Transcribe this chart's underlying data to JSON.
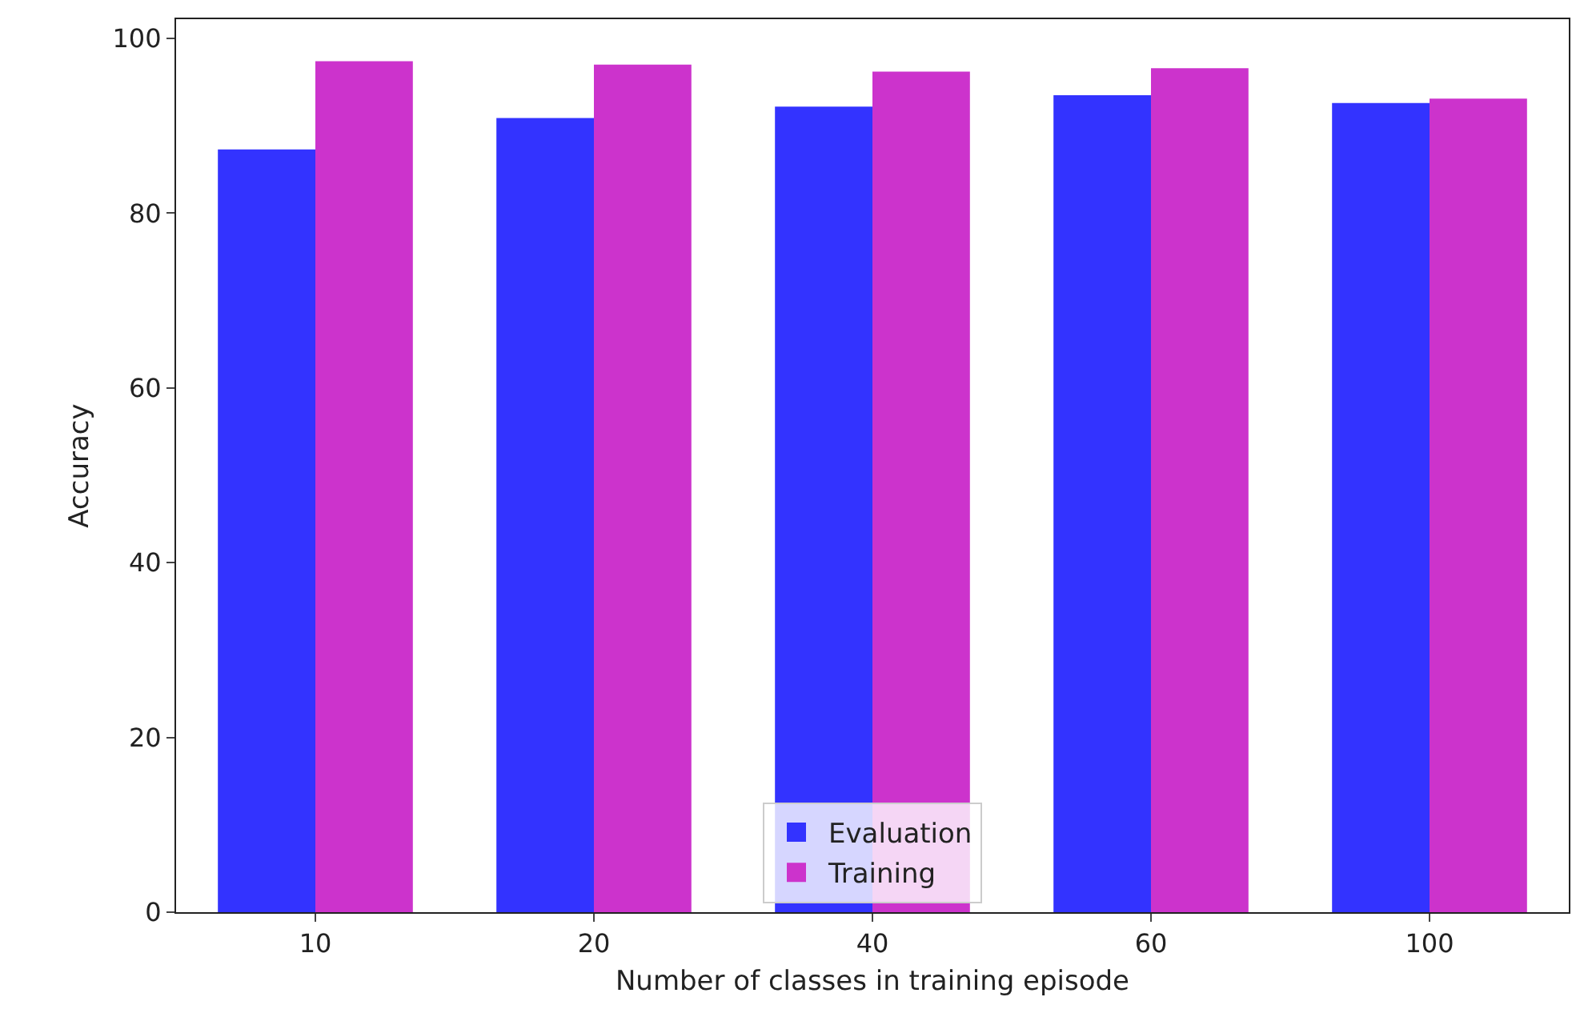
{
  "chart_data": {
    "type": "bar",
    "xlabel": "Number of classes in training episode",
    "ylabel": "Accuracy",
    "categories": [
      "10",
      "20",
      "40",
      "60",
      "100"
    ],
    "series": [
      {
        "name": "Evaluation",
        "color": "#3333ff",
        "values": [
          87.3,
          90.9,
          92.2,
          93.5,
          92.6
        ]
      },
      {
        "name": "Training",
        "color": "#cc33cc",
        "values": [
          97.4,
          97.0,
          96.2,
          96.6,
          93.1
        ]
      }
    ],
    "ylim": [
      0,
      102.2
    ],
    "yticks": [
      0,
      20,
      40,
      60,
      80,
      100
    ],
    "grid": false,
    "legend": "bottom"
  }
}
